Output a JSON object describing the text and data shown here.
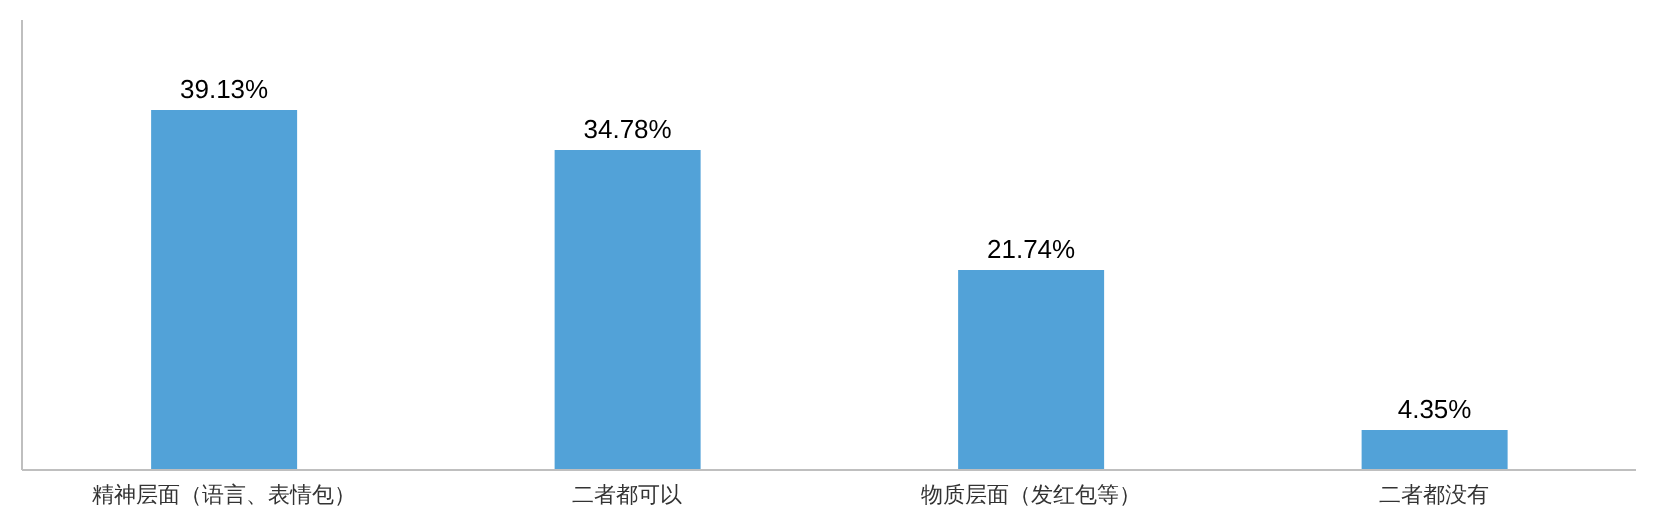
{
  "chart_data": {
    "type": "bar",
    "categories": [
      "精神层面（语言、表情包）",
      "二者都可以",
      "物质层面（发红包等）",
      "二者都没有"
    ],
    "values": [
      39.13,
      34.78,
      21.74,
      4.35
    ],
    "value_labels": [
      "39.13%",
      "34.78%",
      "21.74%",
      "4.35%"
    ],
    "color": "#52a2d8",
    "grid": false,
    "legend": false
  }
}
